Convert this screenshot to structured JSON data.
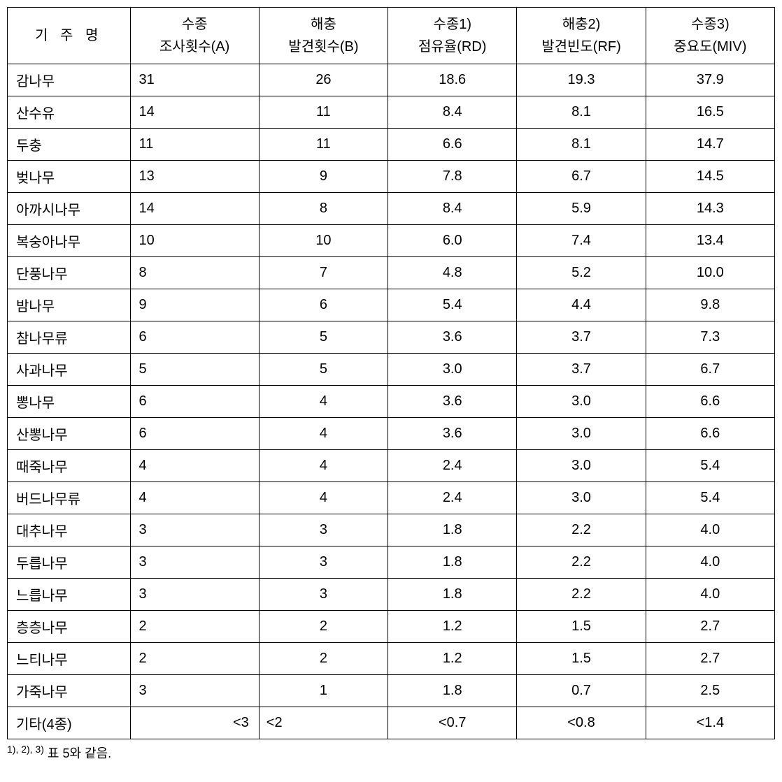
{
  "table": {
    "background_color": "#ffffff",
    "border_color": "#000000",
    "font_family": "Malgun Gothic",
    "font_size_pt": 15,
    "header": {
      "name_label": "기 주 명",
      "columns": [
        {
          "line1": "수종",
          "line2": "조사횟수(A)"
        },
        {
          "line1": "해충",
          "line2": "발견횟수(B)"
        },
        {
          "line1": "수종1)",
          "line2": "점유율(RD)"
        },
        {
          "line1": "해충2)",
          "line2": "발견빈도(RF)"
        },
        {
          "line1": "수종3)",
          "line2": "중요도(MIV)"
        }
      ]
    },
    "rows": [
      {
        "name": "감나무",
        "survey": "31",
        "found": "26",
        "rd": "18.6",
        "rf": "19.3",
        "miv": "37.9"
      },
      {
        "name": "산수유",
        "survey": "14",
        "found": "11",
        "rd": "8.4",
        "rf": "8.1",
        "miv": "16.5"
      },
      {
        "name": "두충",
        "survey": "11",
        "found": "11",
        "rd": "6.6",
        "rf": "8.1",
        "miv": "14.7"
      },
      {
        "name": "벚나무",
        "survey": "13",
        "found": "9",
        "rd": "7.8",
        "rf": "6.7",
        "miv": "14.5"
      },
      {
        "name": "아까시나무",
        "survey": "14",
        "found": "8",
        "rd": "8.4",
        "rf": "5.9",
        "miv": "14.3"
      },
      {
        "name": "복숭아나무",
        "survey": "10",
        "found": "10",
        "rd": "6.0",
        "rf": "7.4",
        "miv": "13.4"
      },
      {
        "name": "단풍나무",
        "survey": "8",
        "found": "7",
        "rd": "4.8",
        "rf": "5.2",
        "miv": "10.0"
      },
      {
        "name": "밤나무",
        "survey": "9",
        "found": "6",
        "rd": "5.4",
        "rf": "4.4",
        "miv": "9.8"
      },
      {
        "name": "참나무류",
        "survey": "6",
        "found": "5",
        "rd": "3.6",
        "rf": "3.7",
        "miv": "7.3"
      },
      {
        "name": "사과나무",
        "survey": "5",
        "found": "5",
        "rd": "3.0",
        "rf": "3.7",
        "miv": "6.7"
      },
      {
        "name": "뽕나무",
        "survey": "6",
        "found": "4",
        "rd": "3.6",
        "rf": "3.0",
        "miv": "6.6"
      },
      {
        "name": "산뽕나무",
        "survey": "6",
        "found": "4",
        "rd": "3.6",
        "rf": "3.0",
        "miv": "6.6"
      },
      {
        "name": "때죽나무",
        "survey": "4",
        "found": "4",
        "rd": "2.4",
        "rf": "3.0",
        "miv": "5.4"
      },
      {
        "name": "버드나무류",
        "survey": "4",
        "found": "4",
        "rd": "2.4",
        "rf": "3.0",
        "miv": "5.4"
      },
      {
        "name": "대추나무",
        "survey": "3",
        "found": "3",
        "rd": "1.8",
        "rf": "2.2",
        "miv": "4.0"
      },
      {
        "name": "두릅나무",
        "survey": "3",
        "found": "3",
        "rd": "1.8",
        "rf": "2.2",
        "miv": "4.0"
      },
      {
        "name": "느릅나무",
        "survey": "3",
        "found": "3",
        "rd": "1.8",
        "rf": "2.2",
        "miv": "4.0"
      },
      {
        "name": "층층나무",
        "survey": "2",
        "found": "2",
        "rd": "1.2",
        "rf": "1.5",
        "miv": "2.7"
      },
      {
        "name": "느티나무",
        "survey": "2",
        "found": "2",
        "rd": "1.2",
        "rf": "1.5",
        "miv": "2.7"
      },
      {
        "name": "가죽나무",
        "survey": "3",
        "found": "1",
        "rd": "1.8",
        "rf": "0.7",
        "miv": "2.5"
      }
    ],
    "last_row": {
      "name": "기타(4종)",
      "survey": "<3",
      "found": "<2",
      "rd": "<0.7",
      "rf": "<0.8",
      "miv": "<1.4"
    }
  },
  "footnote": {
    "refs": "1), 2), 3)",
    "text": "표 5와 같음."
  }
}
